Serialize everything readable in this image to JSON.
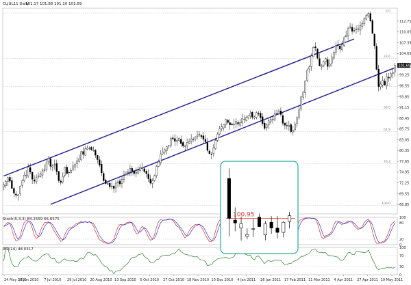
{
  "chart_data": {
    "type": "candlestick",
    "title": "CLJUL11 Daily",
    "ohlc_header": "101.17 101.88 101.10 101.69",
    "last_price": "101.69",
    "colors": {
      "background": "#ffffff",
      "channel": "#1a1a8c",
      "up_candle": "#ffffff",
      "down_candle": "#000000",
      "stoch_k": "#d03030",
      "stoch_d": "#3030d0",
      "rsi": "#2a7a2a",
      "inset_border": "#2aa89a",
      "annotation": "#e03030"
    },
    "main_panel": {
      "ylim": [
        64.5,
        116
      ],
      "y_ticks": [
        "112.75",
        "110.05",
        "107.35",
        "104.65",
        "101.95",
        "99.25",
        "96.55",
        "93.85",
        "91.15",
        "88.45",
        "85.75",
        "83.05",
        "80.35",
        "77.65",
        "74.95",
        "72.25",
        "69.55",
        "66.85"
      ],
      "fib_levels": [
        {
          "value": 114.8,
          "label": "0.0"
        },
        {
          "value": 103.4,
          "label": "23.6"
        },
        {
          "value": 96.4,
          "label": "38.2"
        },
        {
          "value": 90.7,
          "label": "50.0"
        },
        {
          "value": 85.1,
          "label": "61.8"
        },
        {
          "value": 77.1,
          "label": "76.4"
        },
        {
          "value": 66.6,
          "label": "100.0"
        }
      ],
      "channel": {
        "upper": {
          "from": [
            0,
            74.0
          ],
          "to": [
            172,
            108.3
          ]
        },
        "lower": {
          "from": [
            23,
            66.9
          ],
          "to": [
            192,
            101.1
          ]
        }
      }
    },
    "closes": [
      71.8,
      72.6,
      73.6,
      72.7,
      70.9,
      69.7,
      69.2,
      69.3,
      71.4,
      72.8,
      74.2,
      74.2,
      76.3,
      75.0,
      73.2,
      72.7,
      73.6,
      74.0,
      74.5,
      75.3,
      75.7,
      77.3,
      78.4,
      76.4,
      76.5,
      76.9,
      75.1,
      72.8,
      72.4,
      73.9,
      76.2,
      74.6,
      74.8,
      75.4,
      76.5,
      76.9,
      77.8,
      78.3,
      80.1,
      79.4,
      80.8,
      81.0,
      81.0,
      80.6,
      80.5,
      79.2,
      78.1,
      76.7,
      74.8,
      72.8,
      72.1,
      72.1,
      71.3,
      71.5,
      70.9,
      72.2,
      72.5,
      72.0,
      73.1,
      74.1,
      74.6,
      75.0,
      75.9,
      75.2,
      74.6,
      74.9,
      75.5,
      76.2,
      76.1,
      75.1,
      74.6,
      73.3,
      72.2,
      72.8,
      74.1,
      76.4,
      77.6,
      79.5,
      80.0,
      80.6,
      81.3,
      81.6,
      83.4,
      83.3,
      82.7,
      82.9,
      83.4,
      82.1,
      81.5,
      81.5,
      82.4,
      82.6,
      83.3,
      83.2,
      83.7,
      84.3,
      84.4,
      83.8,
      83.2,
      82.6,
      80.4,
      79.6,
      79.4,
      81.1,
      82.9,
      84.5,
      85.8,
      86.3,
      86.9,
      88.2,
      87.4,
      86.8,
      86.8,
      86.9,
      87.7,
      87.0,
      87.4,
      88.4,
      88.2,
      88.7,
      89.0,
      89.7,
      88.7,
      88.8,
      89.9,
      89.5,
      88.6,
      87.1,
      85.9,
      86.8,
      87.8,
      88.2,
      88.2,
      89.6,
      89.6,
      90.3,
      89.4,
      87.2,
      86.7,
      86.6,
      86.6,
      85.1,
      85.4,
      87.0,
      88.6,
      90.7,
      93.8,
      95.0,
      97.8,
      100.5,
      101.3,
      104.1,
      106.2,
      106.1,
      103.5,
      101.6,
      101.6,
      102.6,
      103.4,
      101.4,
      102.0,
      103.8,
      105.0,
      106.7,
      106.7,
      105.8,
      106.8,
      108.6,
      109.2,
      110.9,
      111.3,
      110.2,
      110.4,
      110.7,
      110.8,
      111.7,
      112.2,
      113.4,
      114.2,
      114.7,
      112.8,
      109.7,
      106.6,
      100.7,
      96.4,
      97.0,
      97.9,
      96.8,
      98.9,
      98.5,
      99.6,
      99.9,
      101.7
    ],
    "inset": {
      "annotation": "100.95",
      "candles": [
        {
          "o": 112.0,
          "h": 114.8,
          "l": 96.0,
          "c": 101.0
        },
        {
          "o": 100.5,
          "h": 104.0,
          "l": 97.4,
          "c": 99.7
        },
        {
          "o": 98.3,
          "h": 101.5,
          "l": 94.8,
          "c": 99.5
        },
        {
          "o": 96.0,
          "h": 98.2,
          "l": 95.2,
          "c": 96.5
        },
        {
          "o": 98.0,
          "h": 100.8,
          "l": 95.8,
          "c": 98.1
        },
        {
          "o": 101.3,
          "h": 102.3,
          "l": 98.8,
          "c": 98.7
        },
        {
          "o": 96.4,
          "h": 100.3,
          "l": 94.9,
          "c": 99.5
        },
        {
          "o": 99.9,
          "h": 101.6,
          "l": 96.7,
          "c": 98.3
        },
        {
          "o": 98.3,
          "h": 101.6,
          "l": 95.5,
          "c": 97.1
        },
        {
          "o": 97.1,
          "h": 100.2,
          "l": 95.7,
          "c": 99.9
        },
        {
          "o": 100.1,
          "h": 102.8,
          "l": 98.2,
          "c": 101.7
        }
      ]
    },
    "stoch_panel": {
      "label": "Stoch(5,3,3) 84.2559 66.6575",
      "y_ticks": [
        "100",
        "80",
        "20",
        "0"
      ],
      "ylim": [
        0,
        100
      ],
      "k_period": 5,
      "smooth": 3
    },
    "rsi_panel": {
      "label": "RSI(14) 48.0317",
      "y_ticks": [
        "100",
        "70",
        "30",
        "0"
      ],
      "ylim": [
        0,
        100
      ],
      "period": 14
    },
    "x_ticks": [
      "24 May 2010",
      "15 Jun 2010",
      "7 Jul 2010",
      "29 Jul 2010",
      "20 Aug 2010",
      "13 Sep 2010",
      "5 Oct 2010",
      "27 Oct 2010",
      "18 Nov 2010",
      "10 Dec 2010",
      "4 Jan 2011",
      "26 Jan 2011",
      "17 Feb 2011",
      "11 Mar 2011",
      "4 Apr 2011",
      "27 Apr 2011",
      "19 May 2011"
    ]
  }
}
